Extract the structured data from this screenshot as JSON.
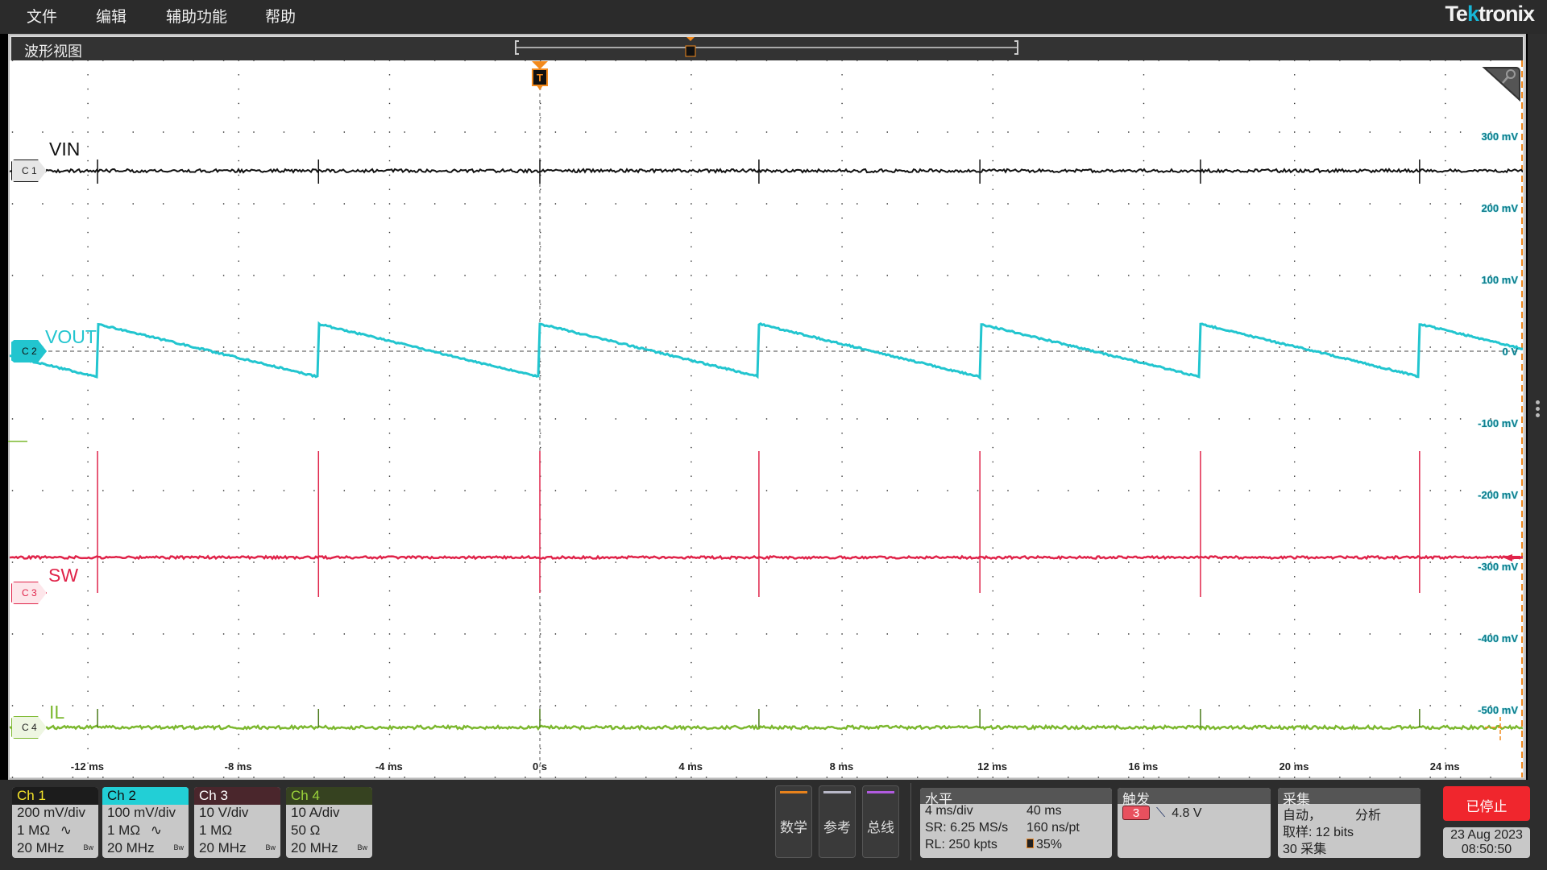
{
  "menu": {
    "items": [
      "文件",
      "编辑",
      "辅助功能",
      "帮助"
    ],
    "brand": "Tektronix"
  },
  "view": {
    "title": "波形视图",
    "trigger_marker": "T",
    "trigger_position_percent": 35
  },
  "graticule": {
    "time_labels": [
      "-12 ms",
      "-8 ms",
      "-4 ms",
      "0 s",
      "4 ms",
      "8 ms",
      "12 ms",
      "16 ms",
      "20 ms",
      "24 ms"
    ],
    "time_ticks_ms": [
      -12,
      -8,
      -4,
      0,
      4,
      8,
      12,
      16,
      20,
      24
    ],
    "time_range_ms": [
      -14,
      26
    ],
    "voltage_labels": [
      "300 mV",
      "200 mV",
      "100 mV",
      "0 V",
      "-100 mV",
      "-200 mV",
      "-300 mV",
      "-400 mV",
      "-500 mV"
    ],
    "voltage_ticks_mv": [
      300,
      200,
      100,
      0,
      -100,
      -200,
      -300,
      -400,
      -500
    ],
    "voltage_label_color": "#1fb5c4"
  },
  "traces": [
    {
      "badge": "C 1",
      "name": "VIN",
      "color": "#111111",
      "badge_bg": "#e6e6e6",
      "badge_fg": "#222"
    },
    {
      "badge": "C 2",
      "name": "VOUT",
      "color": "#22c5cf",
      "badge_bg": "#22c5cf",
      "badge_fg": "#111"
    },
    {
      "badge": "C 3",
      "name": "SW",
      "color": "#e0244a",
      "badge_bg": "#fde6ea",
      "badge_fg": "#e0244a"
    },
    {
      "badge": "C 4",
      "name": "IL",
      "color": "#7cb82f",
      "badge_bg": "#eef6e2",
      "badge_fg": "#222"
    }
  ],
  "waveform": {
    "switch_times_ms": [
      -11.73,
      -5.87,
      0,
      5.81,
      11.67,
      17.52,
      23.33
    ],
    "vout_peak_mv": 38,
    "vout_trough_mv": -36
  },
  "channels": [
    {
      "label": "Ch 1",
      "scale": "200 mV/div",
      "impedance": "1 MΩ",
      "coupling_icon": "∿",
      "bandwidth": "20 MHz",
      "bw_icon": "Bw",
      "header_bg": "#1c1c1c",
      "header_fg": "#f5e42a"
    },
    {
      "label": "Ch 2",
      "scale": "100 mV/div",
      "impedance": "1 MΩ",
      "coupling_icon": "∿",
      "bandwidth": "20 MHz",
      "bw_icon": "Bw",
      "header_bg": "#22cfd6",
      "header_fg": "#111"
    },
    {
      "label": "Ch 3",
      "scale": "10 V/div",
      "impedance": "1 MΩ",
      "coupling_icon": "",
      "bandwidth": "20 MHz",
      "bw_icon": "Bw",
      "header_bg": "#4a262c",
      "header_fg": "#fff"
    },
    {
      "label": "Ch 4",
      "scale": "10 A/div",
      "impedance": "50 Ω",
      "coupling_icon": "",
      "bandwidth": "20 MHz",
      "bw_icon": "Bw",
      "header_bg": "#364220",
      "header_fg": "#9bd33a"
    }
  ],
  "buttons": {
    "math": "数学",
    "ref": "参考",
    "bus": "总线",
    "math_color": "#e8821c",
    "ref_color": "#b8b8c8",
    "bus_color": "#b15be0"
  },
  "horizontal": {
    "title": "水平",
    "scale": "4 ms/div",
    "duration": "40 ms",
    "sample_rate": "SR: 6.25 MS/s",
    "resolution": "160 ns/pt",
    "record_length": "RL: 250 kpts",
    "position": "35%"
  },
  "trigger": {
    "title": "触发",
    "source": "3",
    "slope_icon": "falling-edge",
    "level": "4.8 V"
  },
  "acquisition": {
    "title": "采集",
    "mode": "自动，",
    "analyze": "分析",
    "resolution": "取样: 12 bits",
    "count": "30 采集"
  },
  "status": {
    "run_state": "已停止",
    "date": "23 Aug 2023",
    "time": "08:50:50"
  }
}
